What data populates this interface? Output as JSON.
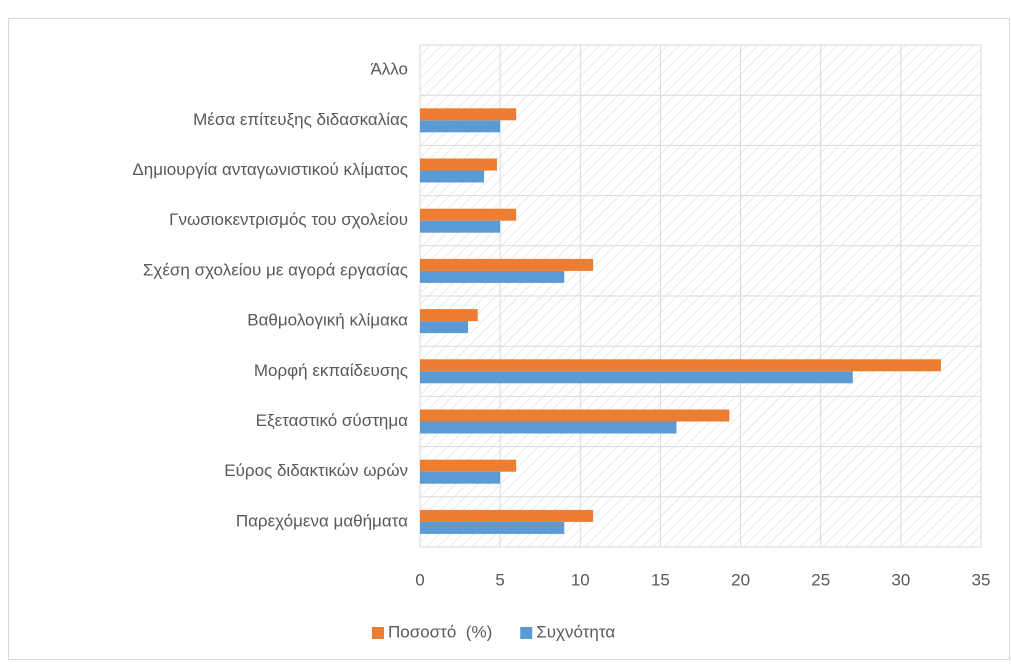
{
  "chart_data": {
    "type": "bar",
    "orientation": "horizontal",
    "categories": [
      "Παρεχόμενα μαθήματα",
      "Εύρος διδακτικών ωρών",
      "Εξεταστικό σύστημα",
      "Μορφή εκπαίδευσης",
      "Βαθμολογική κλίμακα",
      "Σχέση σχολείου με αγορά εργασίας",
      "Γνωσιοκεντρισμός του σχολείου",
      "Δημιουργία ανταγωνιστικού κλίματος",
      "Μέσα επίτευξης διδασκαλίας",
      "Άλλο"
    ],
    "series": [
      {
        "name": "Συχνότητα",
        "color": "#5B9BD5",
        "values": [
          9,
          5,
          16,
          27,
          3,
          9,
          5,
          4,
          5,
          0
        ]
      },
      {
        "name": "Ποσοστό  (%)",
        "color": "#ED7D31",
        "values": [
          10.8,
          6.0,
          19.3,
          32.5,
          3.6,
          10.8,
          6.0,
          4.8,
          6.0,
          0
        ]
      }
    ],
    "xlim": [
      0,
      35
    ],
    "xticks": [
      0,
      5,
      10,
      15,
      20,
      25,
      30,
      35
    ],
    "grid": true,
    "legend": "bottom"
  }
}
